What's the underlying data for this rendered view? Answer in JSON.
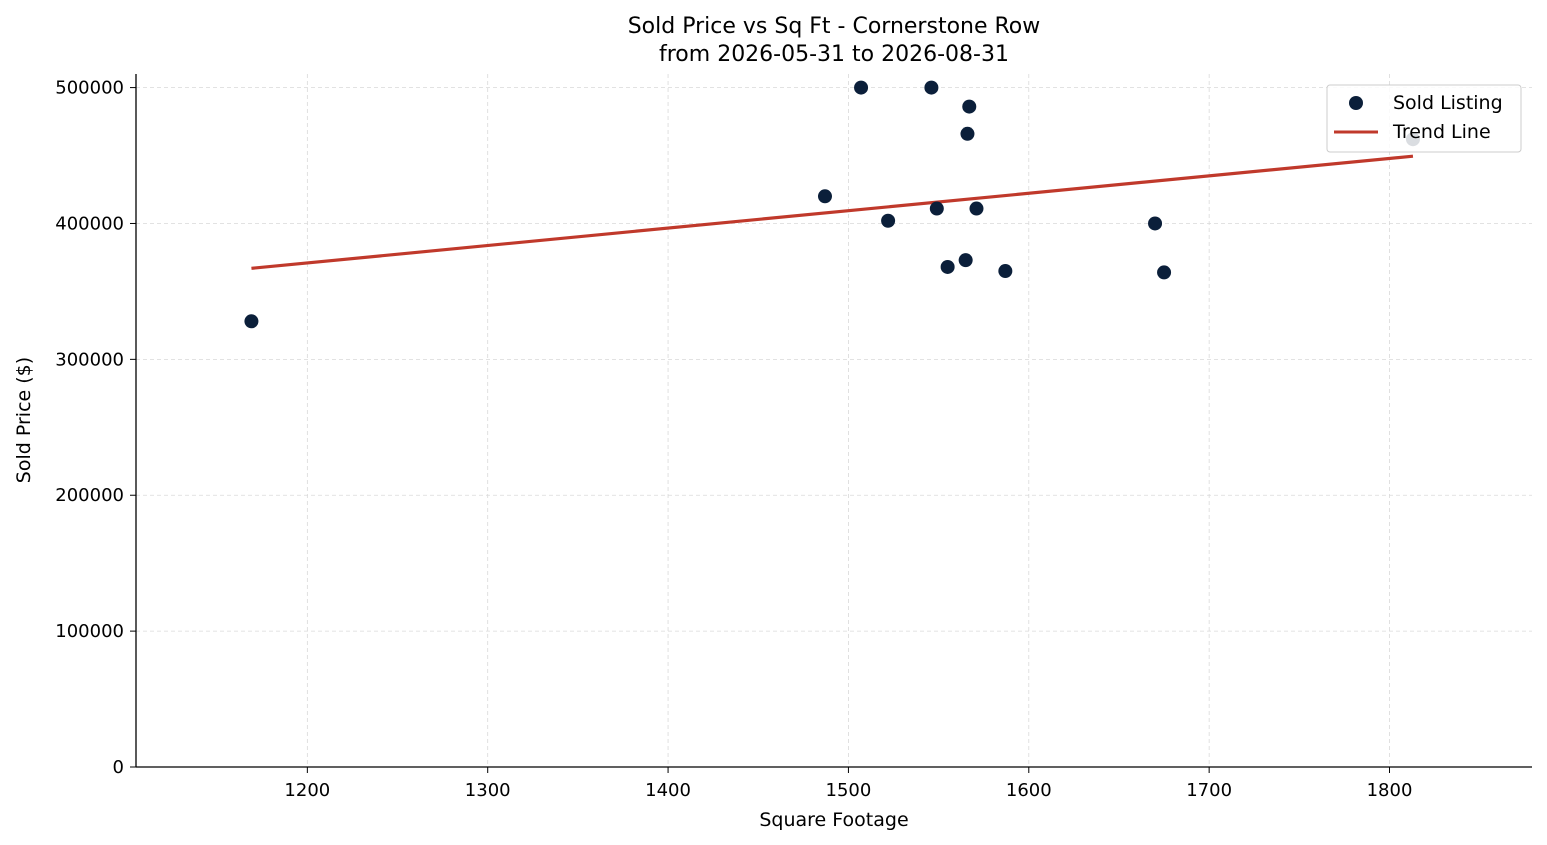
{
  "chart_data": {
    "type": "scatter",
    "title_line1": "Sold Price vs Sq Ft - Cornerstone Row",
    "title_line2": "from 2026-05-31 to 2026-08-31",
    "xlabel": "Square Footage",
    "ylabel": "Sold Price ($)",
    "xlim": [
      1105,
      1879
    ],
    "ylim": [
      0,
      510000
    ],
    "xticks": [
      1200,
      1300,
      1400,
      1500,
      1600,
      1700,
      1800
    ],
    "yticks": [
      0,
      100000,
      200000,
      300000,
      400000,
      500000
    ],
    "grid": true,
    "legend_position": "top-right",
    "series": [
      {
        "name": "Sold Listing",
        "kind": "scatter",
        "color": "#0b1f3a",
        "points": [
          {
            "x": 1169,
            "y": 328000
          },
          {
            "x": 1487,
            "y": 420000
          },
          {
            "x": 1507,
            "y": 500000
          },
          {
            "x": 1522,
            "y": 402000
          },
          {
            "x": 1546,
            "y": 500000
          },
          {
            "x": 1549,
            "y": 411000
          },
          {
            "x": 1555,
            "y": 368000
          },
          {
            "x": 1565,
            "y": 373000
          },
          {
            "x": 1566,
            "y": 466000
          },
          {
            "x": 1567,
            "y": 486000
          },
          {
            "x": 1571,
            "y": 411000
          },
          {
            "x": 1587,
            "y": 365000
          },
          {
            "x": 1670,
            "y": 400000
          },
          {
            "x": 1675,
            "y": 364000
          },
          {
            "x": 1813,
            "y": 462000
          }
        ]
      },
      {
        "name": "Trend Line",
        "kind": "line",
        "color": "#c0392b",
        "points": [
          {
            "x": 1169,
            "y": 367000
          },
          {
            "x": 1813,
            "y": 449500
          }
        ]
      }
    ]
  }
}
